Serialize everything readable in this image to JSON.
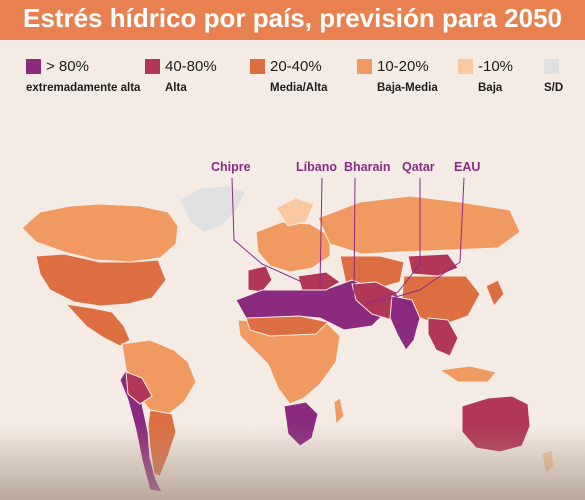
{
  "header": {
    "title": "Estrés hídrico por país, previsión para 2050"
  },
  "legend": [
    {
      "value": "> 80%",
      "label": "extremadamente alta",
      "color": "#8b2a7f"
    },
    {
      "value": "40-80%",
      "label": "Alta",
      "color": "#b23656"
    },
    {
      "value": "20-40%",
      "label": "Media/Alta",
      "color": "#dd6e42"
    },
    {
      "value": "10-20%",
      "label": "Baja-Media",
      "color": "#f09a62"
    },
    {
      "value": "-10%",
      "label": "Baja",
      "color": "#f8c9a0"
    },
    {
      "value": "",
      "label": "S/D",
      "color": "#e0e0e0"
    }
  ],
  "callouts": [
    {
      "name": "Chipre"
    },
    {
      "name": "Líbano"
    },
    {
      "name": "Bharain"
    },
    {
      "name": "Qatar"
    },
    {
      "name": "EAU"
    }
  ]
}
